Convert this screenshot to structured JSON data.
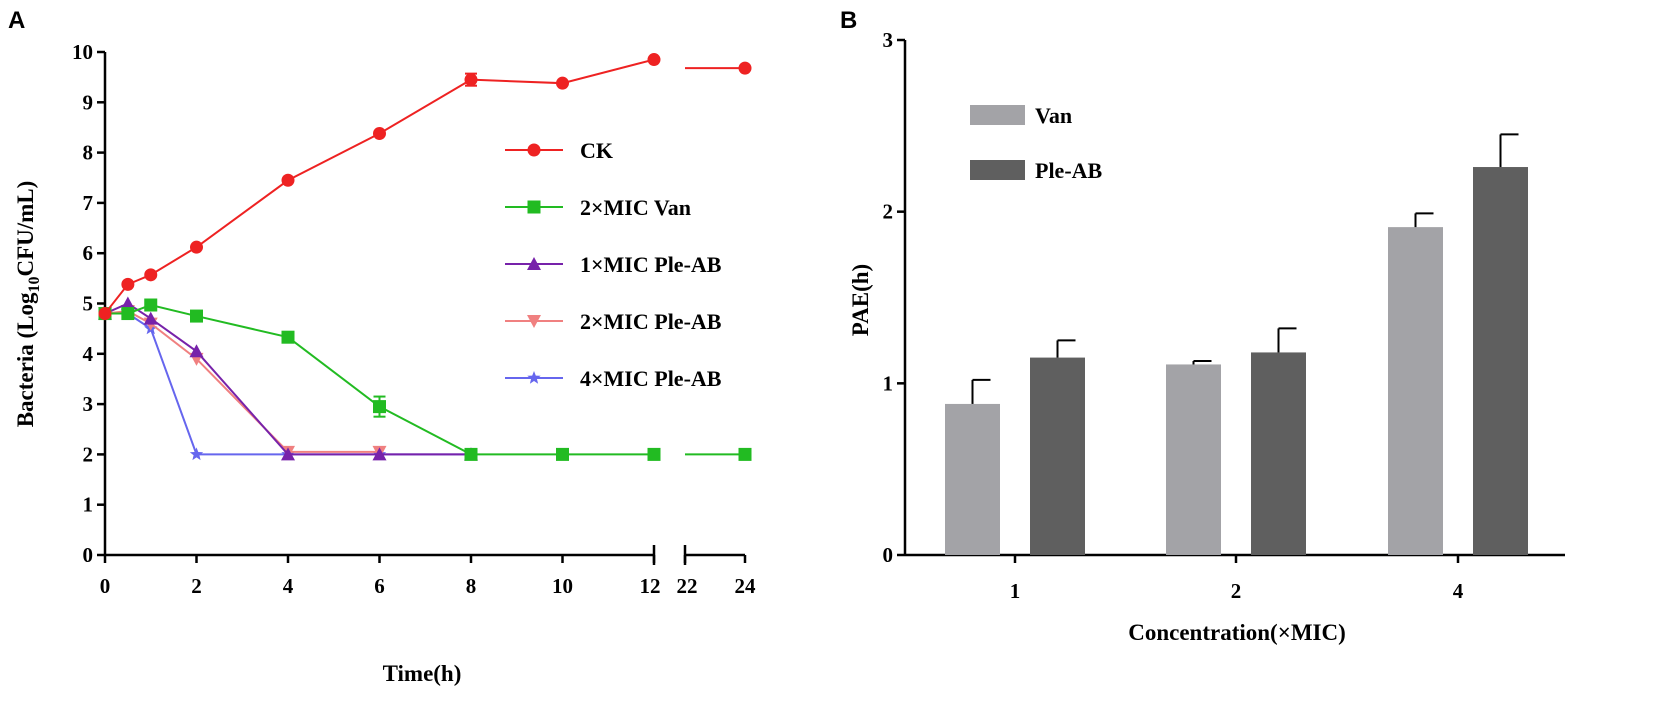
{
  "panels": {
    "a": "A",
    "b": "B"
  },
  "chart_data": [
    {
      "type": "line",
      "panel": "A",
      "xlabel": "Time(h)",
      "ylabel_parts": [
        "Bacteria (Log",
        "10",
        "CFU/mL)"
      ],
      "ylim": [
        0,
        10
      ],
      "yticks": [
        "0",
        "1",
        "2",
        "3",
        "4",
        "5",
        "6",
        "7",
        "8",
        "9",
        "10"
      ],
      "xticks": [
        "0",
        "2",
        "4",
        "6",
        "8",
        "10",
        "12",
        "22",
        "24"
      ],
      "x_break": "12-22",
      "series": [
        {
          "name": "CK",
          "color": "#ee2222",
          "marker": "circle",
          "x": [
            0,
            0.5,
            1,
            2,
            4,
            6,
            8,
            10,
            12,
            24
          ],
          "y": [
            4.8,
            5.38,
            5.57,
            6.12,
            7.45,
            8.38,
            9.45,
            9.38,
            9.85,
            9.68
          ],
          "err": [
            0,
            0,
            0,
            0,
            0,
            0,
            0.12,
            0,
            0,
            0
          ]
        },
        {
          "name": "2×MIC Van",
          "color": "#22bb22",
          "marker": "square",
          "x": [
            0,
            0.5,
            1,
            2,
            4,
            6,
            8,
            10,
            12,
            24
          ],
          "y": [
            4.8,
            4.8,
            4.97,
            4.75,
            4.33,
            2.95,
            2.0,
            2.0,
            2.0,
            2.0
          ],
          "err": [
            0,
            0,
            0,
            0,
            0,
            0.2,
            0,
            0,
            0,
            0
          ]
        },
        {
          "name": "1×MIC Ple-AB",
          "color": "#7722aa",
          "marker": "triangle-up",
          "x": [
            0,
            0.5,
            1,
            2,
            4,
            6,
            8
          ],
          "y": [
            4.8,
            5.0,
            4.7,
            4.05,
            2.0,
            2.0,
            2.0
          ],
          "err": [
            0,
            0,
            0,
            0,
            0,
            0,
            0
          ]
        },
        {
          "name": "2×MIC Ple-AB",
          "color": "#f08080",
          "marker": "triangle-down",
          "x": [
            0,
            0.5,
            1,
            2,
            4,
            6
          ],
          "y": [
            4.8,
            4.85,
            4.6,
            3.9,
            2.05,
            2.05
          ],
          "err": [
            0,
            0,
            0,
            0,
            0,
            0
          ]
        },
        {
          "name": "4×MIC Ple-AB",
          "color": "#6666ee",
          "marker": "star",
          "x": [
            0,
            0.5,
            1,
            2,
            4,
            6,
            8
          ],
          "y": [
            4.8,
            4.8,
            4.5,
            2.0,
            2.0,
            2.0,
            2.0
          ],
          "err": [
            0,
            0,
            0,
            0,
            0,
            0,
            0
          ]
        }
      ],
      "legend_position": "right"
    },
    {
      "type": "bar",
      "panel": "B",
      "categories": [
        "1",
        "2",
        "4"
      ],
      "xlabel": "Concentration(×MIC)",
      "ylabel": "PAE(h)",
      "ylim": [
        0,
        3
      ],
      "yticks": [
        "0",
        "1",
        "2",
        "3"
      ],
      "series": [
        {
          "name": "Van",
          "color": "#a3a3a7",
          "values": [
            0.88,
            1.11,
            1.91
          ],
          "err": [
            0.14,
            0.02,
            0.08
          ]
        },
        {
          "name": "Ple-AB",
          "color": "#5f5f5f",
          "values": [
            1.15,
            1.18,
            2.26
          ],
          "err": [
            0.1,
            0.14,
            0.19
          ]
        }
      ],
      "legend_position": "top-left"
    }
  ]
}
